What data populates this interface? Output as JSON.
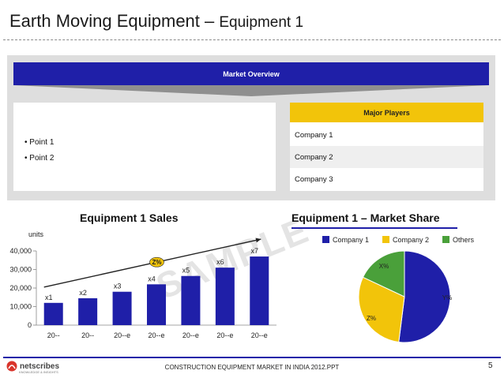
{
  "slide": {
    "title_main": "Earth Moving Equipment",
    "title_dash": " – ",
    "title_sub": "Equipment 1"
  },
  "overview": {
    "banner": "Market Overview",
    "points": [
      "• Point 1",
      "• Point 2"
    ]
  },
  "players": {
    "header": "Major Players",
    "rows": [
      "Company 1",
      "Company 2",
      "Company 3"
    ]
  },
  "sales_title": "Equipment 1  Sales",
  "share_title": "Equipment 1 – Market Share",
  "watermark": "SAMPLE",
  "footer": {
    "text": "CONSTRUCTION EQUIPMENT MARKET IN INDIA 2012.PPT",
    "page": "5",
    "logo_name": "netscribes",
    "logo_tagline": "KNOWLEDGE & INSIGHTS"
  },
  "colors": {
    "bar": "#1f1fa8",
    "banner": "#1f1fa8",
    "header_yellow": "#f2c40a",
    "company1": "#1f1fa8",
    "company2": "#f2c40a",
    "others": "#4aa03a"
  },
  "chart_data": [
    {
      "type": "bar",
      "ylabel": "units",
      "categories": [
        "20--",
        "20--",
        "20--e",
        "20--e",
        "20--e",
        "20--e",
        "20--e"
      ],
      "values": [
        12000,
        14500,
        18000,
        22000,
        26500,
        31000,
        37000
      ],
      "data_labels": [
        "x1",
        "x2",
        "x3",
        "x4",
        "x5",
        "x6",
        "x7"
      ],
      "ylim": [
        0,
        40000
      ],
      "yticks": [
        "0",
        "10,000",
        "20,000",
        "30,000",
        "40,000"
      ],
      "ytick_values": [
        0,
        10000,
        20000,
        30000,
        40000
      ],
      "trend_label": "Z%",
      "grid": false
    },
    {
      "type": "pie",
      "legend_position": "top",
      "slices": [
        {
          "name": "Company 1",
          "value": 52,
          "label": "Y%"
        },
        {
          "name": "Company 2",
          "value": 30,
          "label": "Z%"
        },
        {
          "name": "Others",
          "value": 18,
          "label": "X%"
        }
      ]
    }
  ]
}
